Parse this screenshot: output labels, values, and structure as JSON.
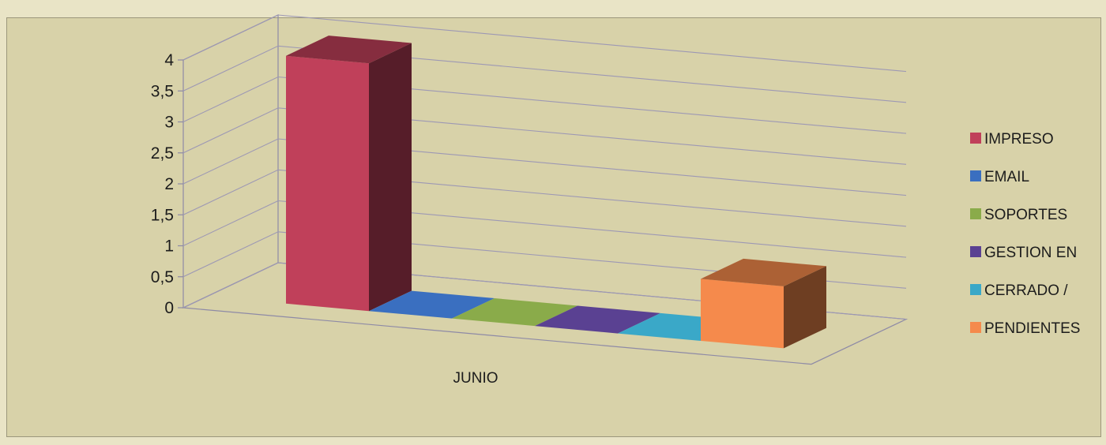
{
  "chart_data": {
    "type": "bar",
    "title": "",
    "xlabel": "",
    "ylabel": "",
    "categories": [
      "JUNIO"
    ],
    "ylim": [
      0,
      4
    ],
    "yticks": [
      "0",
      "0,5",
      "1",
      "1,5",
      "2",
      "2,5",
      "3",
      "3,5",
      "4"
    ],
    "grid": true,
    "legend_position": "right",
    "series": [
      {
        "name": "IMPRESO",
        "values": [
          4
        ],
        "color": "#c0405a"
      },
      {
        "name": "EMAIL",
        "values": [
          0
        ],
        "color": "#3a6fc0"
      },
      {
        "name": "SOPORTES",
        "values": [
          0
        ],
        "color": "#8aab4a"
      },
      {
        "name": "GESTION EN",
        "values": [
          0
        ],
        "color": "#5a4192"
      },
      {
        "name": "CERRADO /",
        "values": [
          0
        ],
        "color": "#3aa8c8"
      },
      {
        "name": "PENDIENTES",
        "values": [
          1
        ],
        "color": "#f58a4c"
      }
    ]
  }
}
